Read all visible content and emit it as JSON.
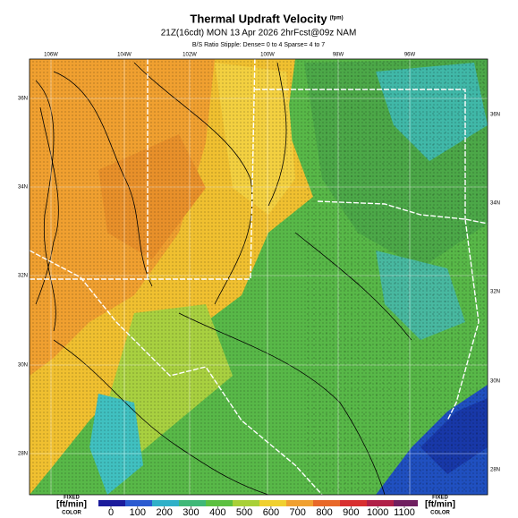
{
  "header": {
    "title": "Thermal Updraft Velocity",
    "title_unit": "(fpm)",
    "subtitle": "21Z(16cdt) MON 13 Apr 2026 2hrFcst@09z NAM",
    "note": "B/S Ratio Stipple: Dense= 0 to 4 Sparse= 4 to 7"
  },
  "map": {
    "lon_labels": [
      "106W",
      "104W",
      "102W",
      "100W",
      "98W",
      "96W"
    ],
    "lat_labels_left": [
      "36N",
      "34N",
      "32N",
      "30N",
      "28N"
    ],
    "lat_labels_right": [
      "36N",
      "34N",
      "32N",
      "30N",
      "28N"
    ]
  },
  "legend": {
    "left_label": [
      "FIXED",
      "[ft/min]",
      "COLOR"
    ],
    "right_label": [
      "FIXED",
      "[ft/min]",
      "COLOR"
    ],
    "ticks": [
      0,
      100,
      200,
      300,
      400,
      500,
      600,
      700,
      800,
      900,
      1000,
      1100
    ]
  }
}
